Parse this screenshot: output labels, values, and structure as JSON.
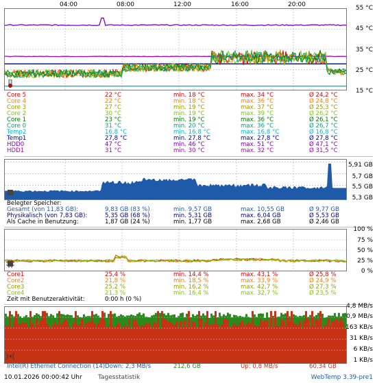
{
  "time_axis": [
    "04:00",
    "08:00",
    "12:00",
    "16:00",
    "20:00"
  ],
  "temp_chart": {
    "y_ticks": [
      "55 °C",
      "45 °C",
      "35 °C",
      "25 °C",
      "15 °C"
    ],
    "rows": [
      {
        "name": "Core 5",
        "cur": "22 °C",
        "min": "min. 18 °C",
        "max": "max. 34 °C",
        "avg": "Ø 24,2 °C",
        "color": "#e00000"
      },
      {
        "name": "Core 4",
        "cur": "22 °C",
        "min": "min. 18 °C",
        "max": "max. 36 °C",
        "avg": "Ø 24,8 °C",
        "color": "#ff7f00"
      },
      {
        "name": "Core 3",
        "cur": "27 °C",
        "min": "min. 19 °C",
        "max": "max. 37 °C",
        "avg": "Ø 25,3 °C",
        "color": "#9a9a00"
      },
      {
        "name": "Core 2",
        "cur": "30 °C",
        "min": "min. 19 °C",
        "max": "max. 39 °C",
        "avg": "Ø 26,2 °C",
        "color": "#7ec800"
      },
      {
        "name": "Core 1",
        "cur": "23 °C",
        "min": "min. 19 °C",
        "max": "max. 36 °C",
        "avg": "Ø 26,1 °C",
        "color": "#007a00"
      },
      {
        "name": "Core 0",
        "cur": "31 °C",
        "min": "min. 20 °C",
        "max": "max. 36 °C",
        "avg": "Ø 26,7 °C",
        "color": "#00a080"
      },
      {
        "name": "Temp2",
        "cur": "16,8 °C",
        "min": "min. 16,8 °C",
        "max": "max. 16,8 °C",
        "avg": "Ø 16,8 °C",
        "color": "#00b8c8"
      },
      {
        "name": "Temp1",
        "cur": "27,8 °C",
        "min": "min. 27,8 °C",
        "max": "max. 27,8 °C",
        "avg": "Ø 27,8 °C",
        "color": "#000090"
      },
      {
        "name": "HDD0",
        "cur": "47 °C",
        "min": "min. 46 °C",
        "max": "max. 51 °C",
        "avg": "Ø 47,1 °C",
        "color": "#7a00c0"
      },
      {
        "name": "HDD1",
        "cur": "31 °C",
        "min": "min. 30 °C",
        "max": "max. 32 °C",
        "avg": "Ø 31,5 °C",
        "color": "#b000b0"
      }
    ]
  },
  "mem_chart": {
    "y_ticks": [
      "5,91 GB",
      "5,7 GB",
      "5,5 GB",
      "5,3 GB"
    ],
    "header": "Belegter Speicher:",
    "rows": [
      {
        "name": "Gesamt (von 11,83 GB):",
        "cur": "9,83 GB (83 %)",
        "min": "min. 9,57 GB",
        "max": "max. 10,55 GB",
        "avg": "Ø 9,77 GB",
        "color": "#1e5aa8"
      },
      {
        "name": "Physikalisch (von 7,83 GB):",
        "cur": "5,35 GB (68 %)",
        "min": "min. 5,31 GB",
        "max": "max. 6,04 GB",
        "avg": "Ø 5,53 GB",
        "color": "#000080"
      },
      {
        "name": "Als Cache in Benutzung:",
        "cur": "1,87 GB (24 %)",
        "min": "min. 1,77 GB",
        "max": "max. 2,68 GB",
        "avg": "Ø 2,46 GB",
        "color": "#000000"
      }
    ]
  },
  "cpu_chart": {
    "y_ticks": [
      "100 %",
      "75 %",
      "50 %",
      "25 %",
      "0 %"
    ],
    "rows": [
      {
        "name": "Core1",
        "cur": "25,4 %",
        "min": "min. 14,4 %",
        "max": "max. 43,1 %",
        "avg": "Ø 25,8 %",
        "color": "#e00000"
      },
      {
        "name": "Core2",
        "cur": "21,8 %",
        "min": "min. 18,5 %",
        "max": "max. 33,9 %",
        "avg": "Ø 24,9 %",
        "color": "#ff7f00"
      },
      {
        "name": "Core3",
        "cur": "25,2 %",
        "min": "min. 16,2 %",
        "max": "max. 42,7 %",
        "avg": "Ø 27,3 %",
        "color": "#9a9a00"
      },
      {
        "name": "Core4",
        "cur": "21,3 %",
        "min": "min. 16,4 %",
        "max": "max. 32,7 %",
        "avg": "Ø 23,5 %",
        "color": "#7ec800"
      }
    ],
    "activity_label": "Zeit mit Benutzeraktivität:",
    "activity_value": "0:00 h (0 %)"
  },
  "net_chart": {
    "y_ticks": [
      "4,8 MB/s",
      "0,9 MB/s",
      "163 KB/s",
      "31 KB/s",
      "6 KB/s",
      "1 KB/s"
    ],
    "adapter": "Intel(R) Ethernet Connection (14)",
    "down_label": "Down: 2,3 MB/s",
    "down_total": "212,6 GB",
    "up_label": "Up: 0,8 MB/s",
    "up_total": "60,34 GB",
    "down_color": "#2a8a1e",
    "up_color": "#c83214"
  },
  "footer": {
    "datetime": "10.01.2026 00:00:42 Uhr",
    "stat_mode": "Tagesstatistik",
    "version": "WebTemp 3.39-pre1"
  }
}
